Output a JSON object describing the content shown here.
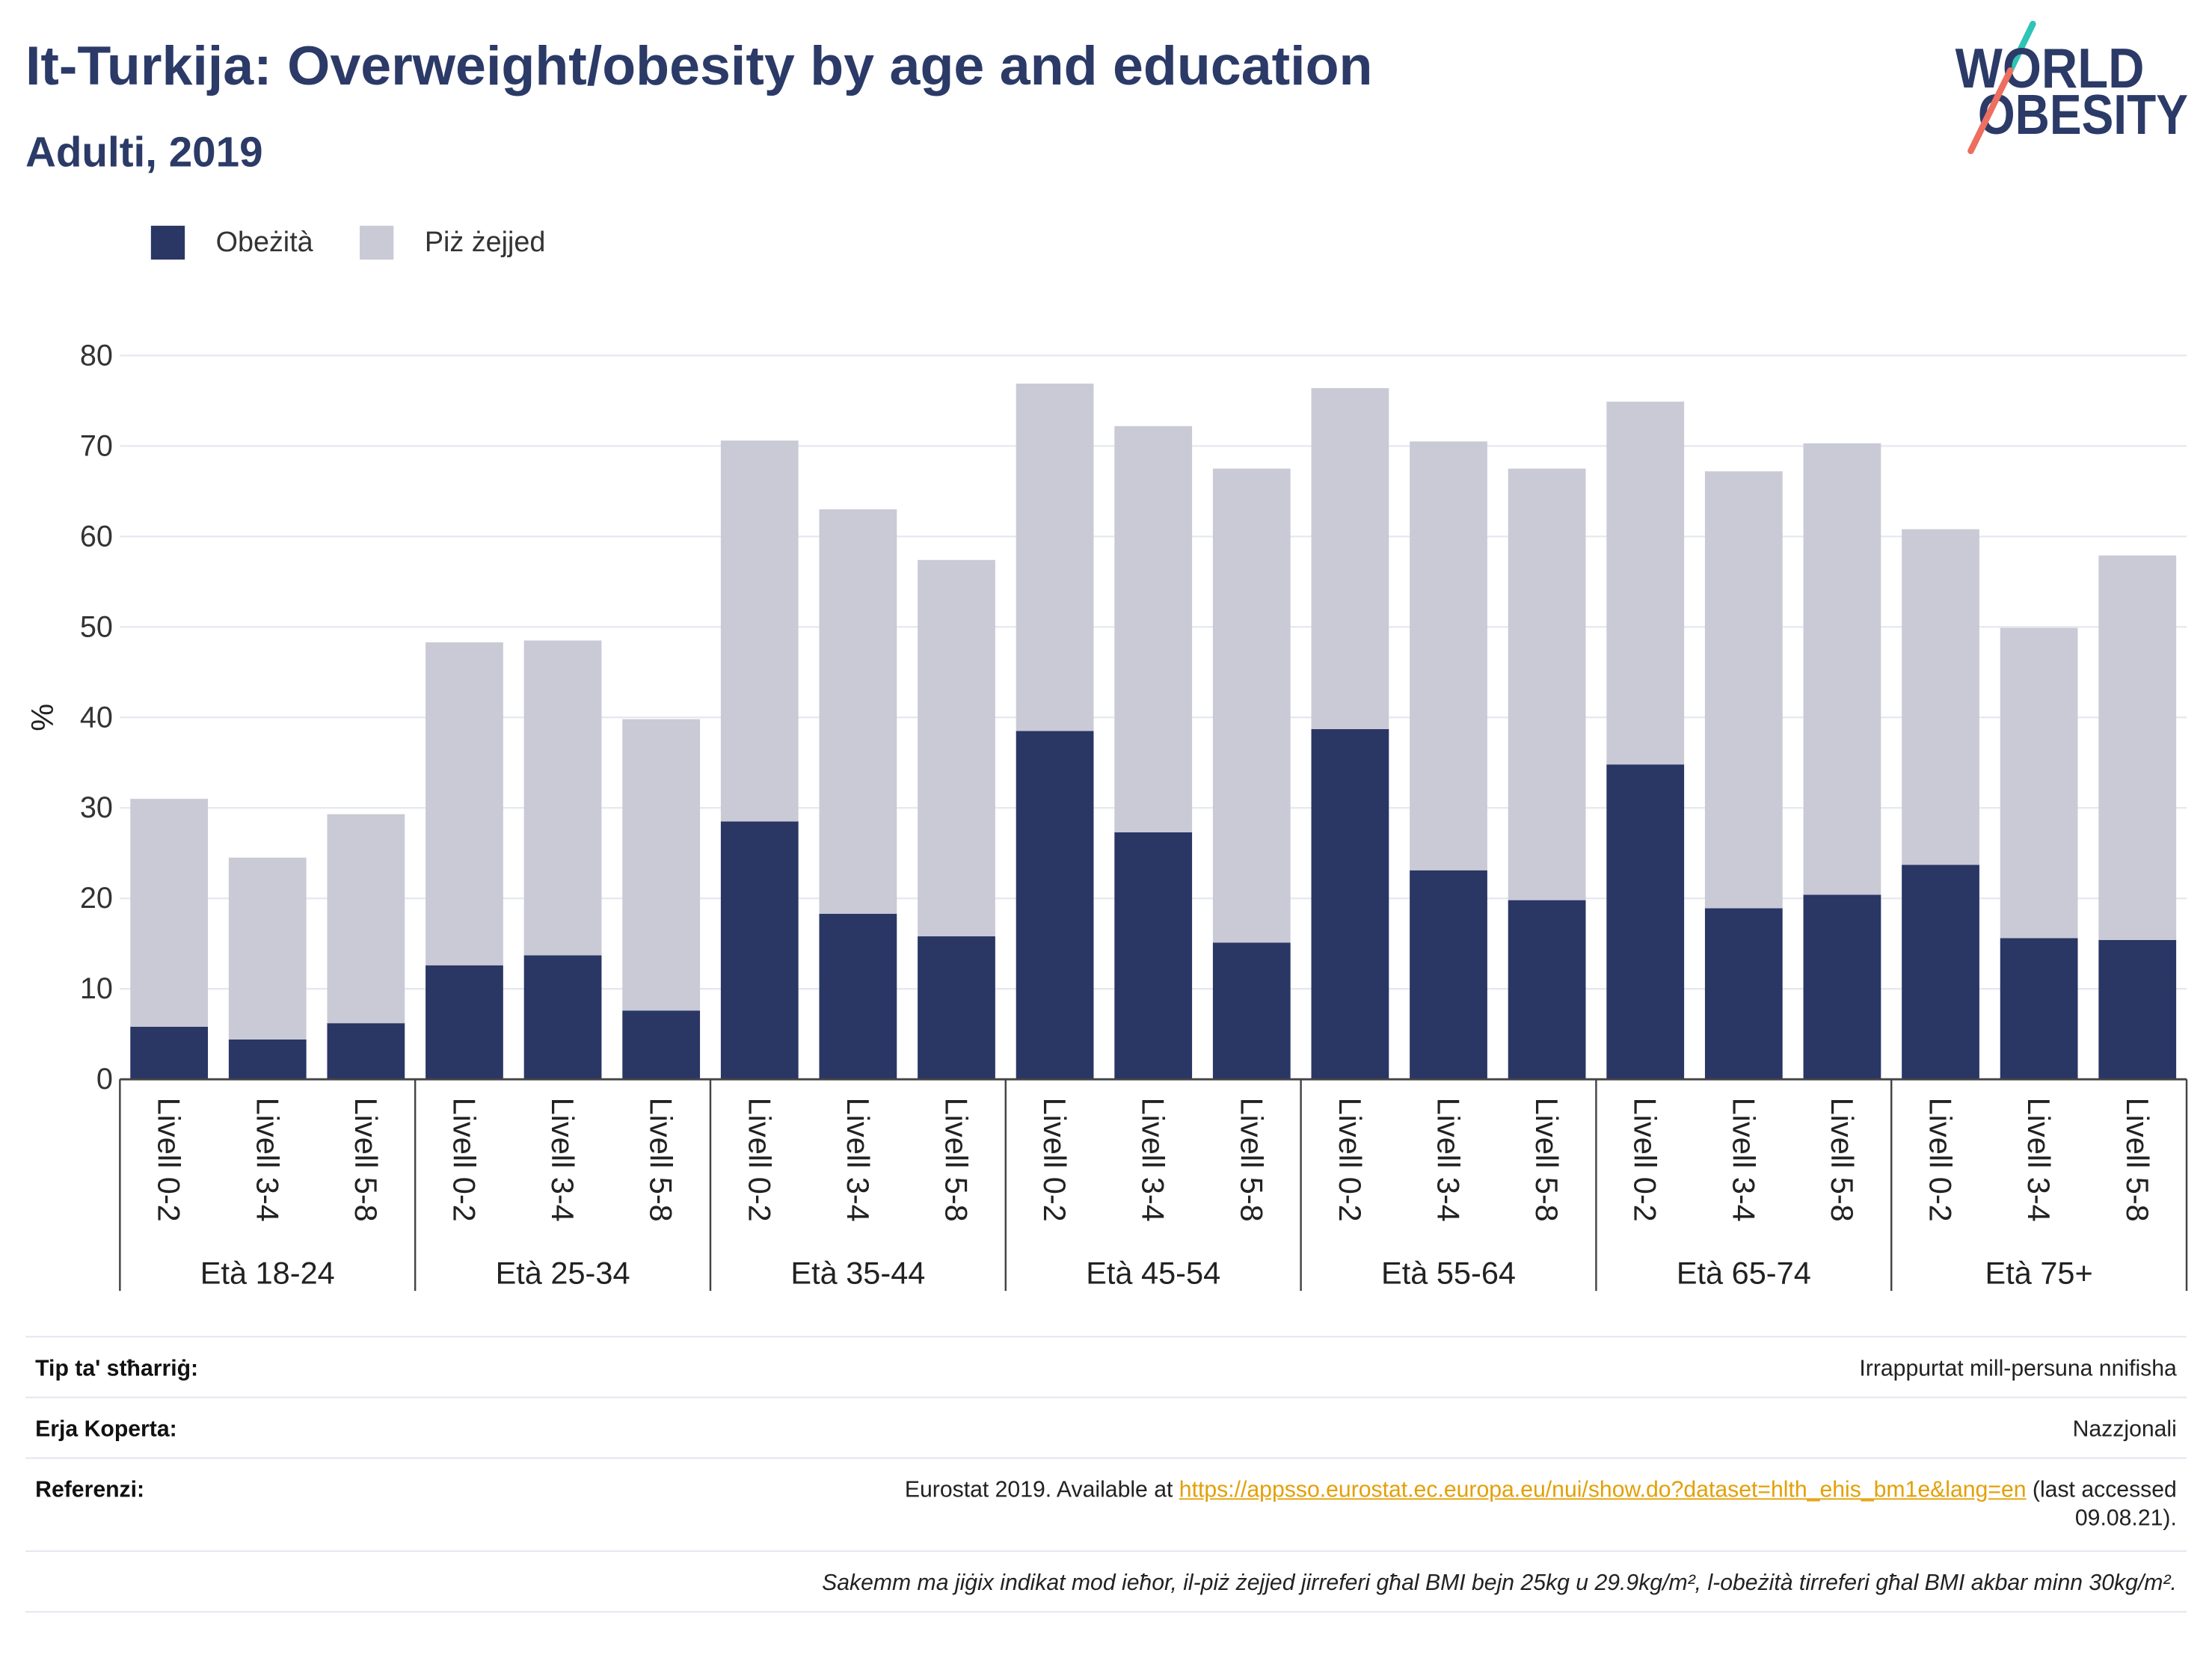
{
  "chart_data": {
    "type": "bar",
    "stacked": true,
    "title": "It-Turkija: Overweight/obesity by age and education",
    "subtitle": "Adulti, 2019",
    "ylabel": "%",
    "ylim": [
      0,
      80
    ],
    "yticks": [
      0,
      10,
      20,
      30,
      40,
      50,
      60,
      70,
      80
    ],
    "grid": true,
    "legend_position": "top-left",
    "groups": [
      "Età 18-24",
      "Età 25-34",
      "Età 35-44",
      "Età 45-54",
      "Età 55-64",
      "Età 65-74",
      "Età 75+"
    ],
    "levels": [
      "Livell 0-2",
      "Livell 3-4",
      "Livell 5-8"
    ],
    "series": [
      {
        "name": "Obeżità",
        "color": "#2a3664",
        "values": [
          5.8,
          4.4,
          6.2,
          12.6,
          13.7,
          7.6,
          28.5,
          18.3,
          15.8,
          38.5,
          27.3,
          15.1,
          38.7,
          23.1,
          19.8,
          34.8,
          18.9,
          20.4,
          23.7,
          15.6,
          15.4
        ]
      },
      {
        "name": "Piż żejjed",
        "color": "#c9cad6",
        "values": [
          25.2,
          20.1,
          23.1,
          35.7,
          34.8,
          32.2,
          42.1,
          44.7,
          41.6,
          38.4,
          44.9,
          52.4,
          37.7,
          47.4,
          47.7,
          40.1,
          48.3,
          49.9,
          37.1,
          34.3,
          42.5
        ]
      }
    ]
  },
  "logo": {
    "line1": "WORLD",
    "line2": "OBESITY",
    "text_color": "#2b3a67",
    "slash_top_color": "#2ec4b6",
    "slash_bottom_color": "#ec6f5f"
  },
  "colors": {
    "title": "#2b3a67",
    "link": "#e3a008"
  },
  "footer": {
    "survey_type": {
      "label": "Tip ta' stħarriġ:",
      "value": "Irrappurtat mill-persuna nnifisha"
    },
    "coverage": {
      "label": "Erja Koperta:",
      "value": "Nazzjonali"
    },
    "reference": {
      "label": "Referenzi:",
      "text": "Eurostat 2019. Available at",
      "link": "https://appsso.eurostat.ec.europa.eu/nui/show.do?dataset=hlth_ehis_bm1e&lang=en",
      "access_note": "(last accessed",
      "access_date": "09.08.21)."
    },
    "note": "Sakemm ma jiġix indikat mod ieħor, il-piż żejjed jirreferi għal BMI bejn 25kg u 29.9kg/m², l-obeżità tirreferi għal BMI akbar minn 30kg/m²."
  }
}
